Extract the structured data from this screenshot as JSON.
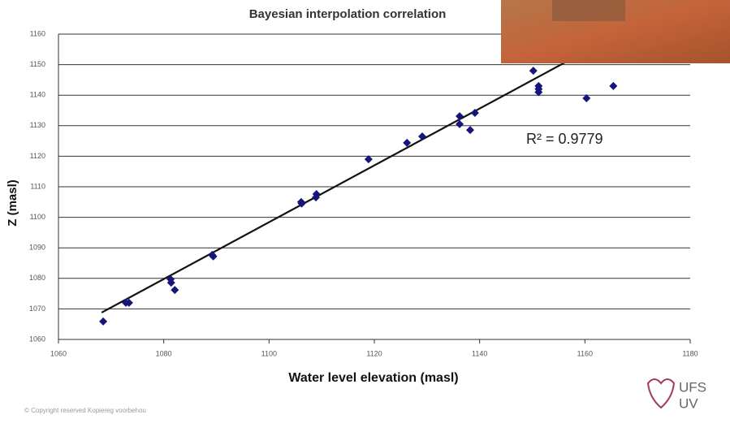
{
  "chart_data": {
    "type": "scatter",
    "title": "Bayesian interpolation correlation",
    "x_label": "Water level elevation (masl)",
    "y_label": "Z (masl)",
    "x": [
      1068.5,
      1072.8,
      1073.4,
      1081.3,
      1081.4,
      1082.1,
      1089.2,
      1089.4,
      1106.1,
      1106.2,
      1109.0,
      1108.9,
      1118.9,
      1126.2,
      1129.1,
      1136.2,
      1136.2,
      1138.2,
      1139.1,
      1150.2,
      1151.2,
      1151.2,
      1151.2,
      1160.3,
      1165.4
    ],
    "values": [
      1065.9,
      1072.0,
      1072.0,
      1079.7,
      1078.6,
      1076.2,
      1087.7,
      1087.2,
      1105.0,
      1104.5,
      1107.6,
      1106.5,
      1119.0,
      1124.4,
      1126.5,
      1133.1,
      1130.5,
      1128.6,
      1134.2,
      1148.0,
      1143.0,
      1142.0,
      1141.0,
      1139.0,
      1143.0
    ],
    "color": "#16167a",
    "trendline": {
      "x": [
        1068.2,
        1157.6
      ],
      "y": [
        1068.8,
        1152.0
      ],
      "color": "#111111"
    },
    "annotation": "R² = 0.9779",
    "xlim": [
      1060,
      1180
    ],
    "xticks": [
      1060,
      1080,
      1100,
      1120,
      1140,
      1160,
      1180
    ],
    "ylim": [
      1060,
      1160
    ],
    "yticks": [
      1060,
      1070,
      1080,
      1090,
      1100,
      1110,
      1120,
      1130,
      1140,
      1150,
      1160
    ],
    "grid": true
  },
  "footer": {
    "copyright": "© Copyright reserved Kopiereg voorbehou",
    "logo_top": "UFS",
    "logo_bottom": "UV"
  }
}
